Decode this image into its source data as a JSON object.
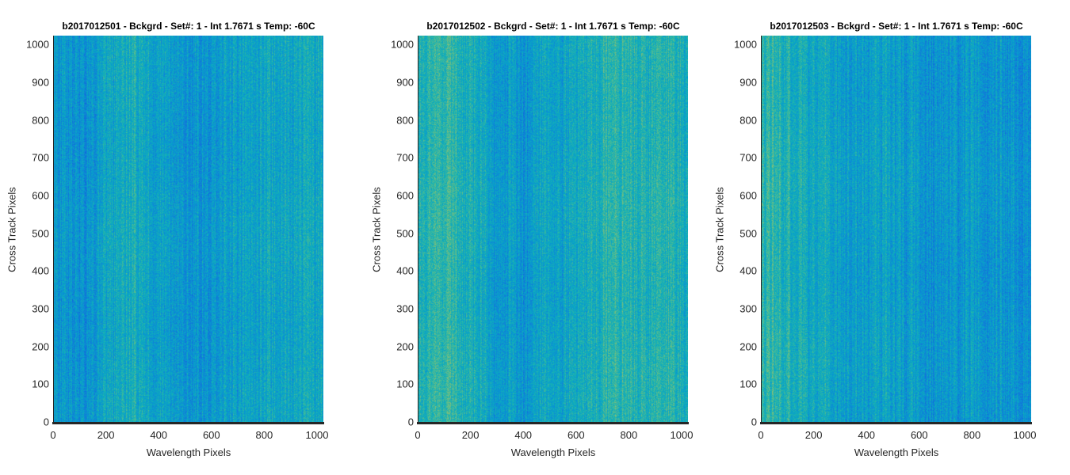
{
  "chart_data": [
    {
      "type": "heatmap",
      "title": "b2017012501 - Bckgrd - Set#: 1 - Int 1.7671 s Temp: -60C",
      "xlabel": "Wavelength Pixels",
      "ylabel": "Cross Track Pixels",
      "xlim": [
        0,
        1024
      ],
      "ylim": [
        0,
        1024
      ],
      "xticks": [
        0,
        200,
        400,
        600,
        800,
        1000
      ],
      "yticks": [
        0,
        100,
        200,
        300,
        400,
        500,
        600,
        700,
        800,
        900,
        1000
      ],
      "xtick_labels": [
        "0",
        "200",
        "400",
        "600",
        "800",
        "1000"
      ],
      "ytick_labels": [
        "0",
        "100",
        "200",
        "300",
        "400",
        "500",
        "600",
        "700",
        "800",
        "900",
        "1000"
      ],
      "colormap": "parula",
      "column_profile": {
        "x": [
          0,
          100,
          200,
          300,
          400,
          500,
          600,
          700,
          800,
          900,
          1024
        ],
        "level": [
          0.42,
          0.36,
          0.44,
          0.52,
          0.46,
          0.4,
          0.44,
          0.48,
          0.5,
          0.49,
          0.5
        ]
      },
      "seed": 1
    },
    {
      "type": "heatmap",
      "title": "b2017012502 - Bckgrd - Set#: 1 - Int 1.7671 s Temp: -60C",
      "xlabel": "Wavelength Pixels",
      "ylabel": "Cross Track Pixels",
      "xlim": [
        0,
        1024
      ],
      "ylim": [
        0,
        1024
      ],
      "xticks": [
        0,
        200,
        400,
        600,
        800,
        1000
      ],
      "yticks": [
        0,
        100,
        200,
        300,
        400,
        500,
        600,
        700,
        800,
        900,
        1000
      ],
      "xtick_labels": [
        "0",
        "200",
        "400",
        "600",
        "800",
        "1000"
      ],
      "ytick_labels": [
        "0",
        "100",
        "200",
        "300",
        "400",
        "500",
        "600",
        "700",
        "800",
        "900",
        "1000"
      ],
      "colormap": "parula",
      "column_profile": {
        "x": [
          0,
          100,
          200,
          300,
          400,
          500,
          600,
          700,
          800,
          900,
          1024
        ],
        "level": [
          0.56,
          0.58,
          0.54,
          0.44,
          0.42,
          0.46,
          0.5,
          0.54,
          0.58,
          0.52,
          0.54
        ]
      },
      "seed": 2
    },
    {
      "type": "heatmap",
      "title": "b2017012503 - Bckgrd - Set#: 1 - Int 1.7671 s Temp: -60C",
      "xlabel": "Wavelength Pixels",
      "ylabel": "Cross Track Pixels",
      "xlim": [
        0,
        1024
      ],
      "ylim": [
        0,
        1024
      ],
      "xticks": [
        0,
        200,
        400,
        600,
        800,
        1000
      ],
      "yticks": [
        0,
        100,
        200,
        300,
        400,
        500,
        600,
        700,
        800,
        900,
        1000
      ],
      "xtick_labels": [
        "0",
        "200",
        "400",
        "600",
        "800",
        "1000"
      ],
      "ytick_labels": [
        "0",
        "100",
        "200",
        "300",
        "400",
        "500",
        "600",
        "700",
        "800",
        "900",
        "1000"
      ],
      "colormap": "parula",
      "column_profile": {
        "x": [
          0,
          100,
          200,
          300,
          400,
          500,
          600,
          700,
          800,
          900,
          1024
        ],
        "level": [
          0.56,
          0.54,
          0.5,
          0.46,
          0.44,
          0.45,
          0.42,
          0.4,
          0.42,
          0.4,
          0.4
        ]
      },
      "seed": 3
    }
  ]
}
